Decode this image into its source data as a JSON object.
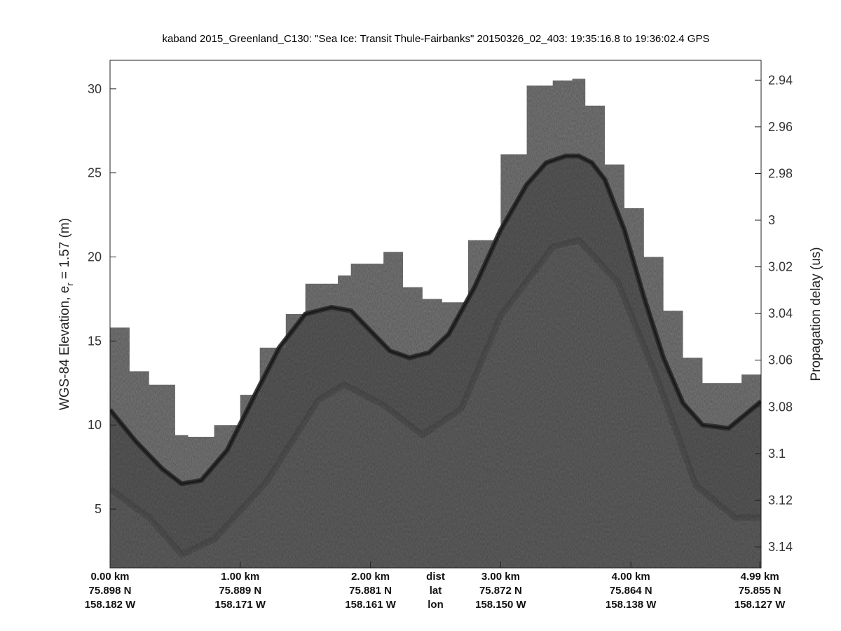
{
  "chart_data": {
    "type": "radar-echogram",
    "title": "kaband 2015_Greenland_C130: \"Sea Ice: Transit Thule-Fairbanks\"  20150326_02_403: 19:35:16.8 to 19:36:02.4 GPS",
    "ylabel_left_prefix": "WGS-84 Elevation, e",
    "ylabel_left_subscript": "r",
    "ylabel_left_suffix": " = 1.57 (m)",
    "ylabel_right": "Propagation delay (us)",
    "xlim_km": [
      0,
      5.0
    ],
    "ylim_left": [
      1.5,
      31.7
    ],
    "ylim_right": [
      3.149,
      2.9315
    ],
    "yticks_left": [
      "5",
      "10",
      "15",
      "20",
      "25",
      "30"
    ],
    "yticks_left_values": [
      5,
      10,
      15,
      20,
      25,
      30
    ],
    "yticks_right": [
      "2.94",
      "2.96",
      "2.98",
      "3",
      "3.02",
      "3.04",
      "3.06",
      "3.08",
      "3.1",
      "3.12",
      "3.14"
    ],
    "yticks_right_values": [
      2.94,
      2.96,
      2.98,
      3.0,
      3.02,
      3.04,
      3.06,
      3.08,
      3.1,
      3.12,
      3.14
    ],
    "xticks": [
      {
        "x_km": 0.0,
        "dist": "0.00 km",
        "lat": "75.898 N",
        "lon": "158.182 W"
      },
      {
        "x_km": 1.0,
        "dist": "1.00 km",
        "lat": "75.889 N",
        "lon": "158.171 W"
      },
      {
        "x_km": 2.0,
        "dist": "2.00 km",
        "lat": "75.881 N",
        "lon": "158.161 W"
      },
      {
        "x_km": 3.0,
        "dist": "3.00 km",
        "lat": "75.872 N",
        "lon": "158.150 W"
      },
      {
        "x_km": 4.0,
        "dist": "4.00 km",
        "lat": "75.864 N",
        "lon": "158.138 W"
      },
      {
        "x_km": 4.99,
        "dist": "4.99 km",
        "lat": "75.855 N",
        "lon": "158.127 W"
      }
    ],
    "row_labels": {
      "x_km": 2.5,
      "dist": "dist",
      "lat": "lat",
      "lon": "lon"
    },
    "surface_profile": {
      "x_km": [
        0.0,
        0.2,
        0.4,
        0.55,
        0.7,
        0.9,
        1.1,
        1.3,
        1.5,
        1.7,
        1.85,
        2.0,
        2.15,
        2.3,
        2.45,
        2.6,
        2.8,
        3.0,
        3.2,
        3.35,
        3.5,
        3.6,
        3.7,
        3.8,
        3.95,
        4.1,
        4.25,
        4.4,
        4.55,
        4.75,
        5.0
      ],
      "elevation_m": [
        10.9,
        9.0,
        7.4,
        6.5,
        6.7,
        8.5,
        11.6,
        14.6,
        16.6,
        17.0,
        16.8,
        15.6,
        14.4,
        14.0,
        14.3,
        15.4,
        18.2,
        21.6,
        24.3,
        25.6,
        26.0,
        26.0,
        25.6,
        24.6,
        21.6,
        17.6,
        14.0,
        11.3,
        10.0,
        9.8,
        11.4
      ]
    },
    "data_top_profile": {
      "x_km": [
        0.0,
        0.15,
        0.3,
        0.5,
        0.6,
        0.8,
        1.0,
        1.15,
        1.35,
        1.5,
        1.75,
        1.85,
        2.1,
        2.25,
        2.4,
        2.55,
        2.75,
        3.0,
        3.2,
        3.4,
        3.55,
        3.65,
        3.8,
        3.95,
        4.1,
        4.25,
        4.4,
        4.55,
        4.7,
        4.85,
        5.0
      ],
      "elevation_m": [
        15.8,
        13.2,
        12.4,
        9.4,
        9.3,
        10.0,
        11.8,
        14.6,
        16.6,
        18.4,
        18.9,
        19.6,
        20.3,
        18.2,
        17.5,
        17.3,
        21.0,
        26.1,
        30.2,
        30.5,
        30.6,
        29.0,
        25.5,
        22.9,
        20.0,
        16.8,
        14.0,
        12.5,
        12.5,
        13.0,
        13.8
      ]
    },
    "internal_layers": [
      {
        "x_km": [
          0.0,
          0.3,
          0.55,
          0.8,
          1.2,
          1.6,
          1.8,
          2.1,
          2.4,
          2.7,
          3.0,
          3.4,
          3.6,
          3.9,
          4.2,
          4.5,
          4.8,
          5.0
        ],
        "elevation_m": [
          6.2,
          4.5,
          2.3,
          3.2,
          6.6,
          11.5,
          12.4,
          11.2,
          9.4,
          11.0,
          16.5,
          20.6,
          21.0,
          18.5,
          12.8,
          6.4,
          4.5,
          4.5
        ]
      }
    ],
    "colormap": "gray",
    "grid": false
  }
}
